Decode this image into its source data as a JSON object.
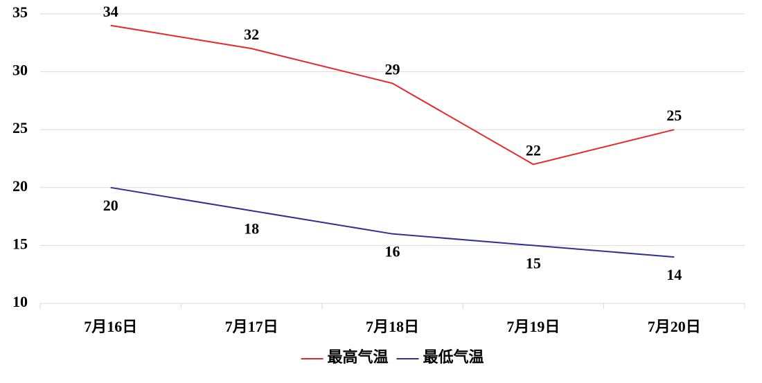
{
  "chart_data": {
    "type": "line",
    "categories": [
      "7月16日",
      "7月17日",
      "7月18日",
      "7月19日",
      "7月20日"
    ],
    "series": [
      {
        "name": "最高气温",
        "color": "#e8262a",
        "values": [
          34,
          32,
          29,
          22,
          25
        ]
      },
      {
        "name": "最低气温",
        "color": "#2e3192",
        "values": [
          20,
          18,
          16,
          15,
          14
        ]
      }
    ],
    "ylim": [
      10,
      35
    ],
    "yticks": [
      10,
      15,
      20,
      25,
      30,
      35
    ],
    "grid": true,
    "legend": "bottom"
  }
}
